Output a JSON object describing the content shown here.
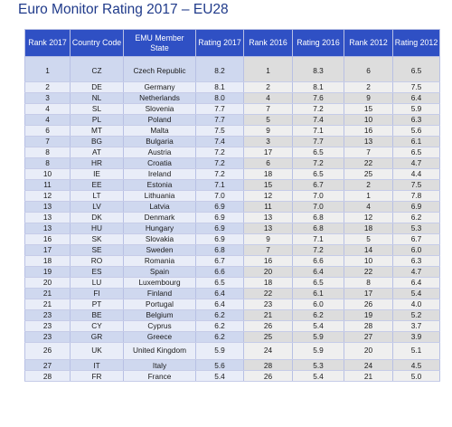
{
  "title": "Euro Monitor Rating 2017 – EU28",
  "columns": [
    "Rank 2017",
    "Country Code",
    "EMU Member State",
    "Rating 2017",
    "Rank 2016",
    "Rating 2016",
    "Rank 2012",
    "Rating 2012"
  ],
  "rows": [
    [
      "1",
      "CZ",
      "Czech Republic",
      "8.2",
      "1",
      "8.3",
      "6",
      "6.5"
    ],
    [
      "2",
      "DE",
      "Germany",
      "8.1",
      "2",
      "8.1",
      "2",
      "7.5"
    ],
    [
      "3",
      "NL",
      "Netherlands",
      "8.0",
      "4",
      "7.6",
      "9",
      "6.4"
    ],
    [
      "4",
      "SL",
      "Slovenia",
      "7.7",
      "7",
      "7.2",
      "15",
      "5.9"
    ],
    [
      "4",
      "PL",
      "Poland",
      "7.7",
      "5",
      "7.4",
      "10",
      "6.3"
    ],
    [
      "6",
      "MT",
      "Malta",
      "7.5",
      "9",
      "7.1",
      "16",
      "5.6"
    ],
    [
      "7",
      "BG",
      "Bulgaria",
      "7.4",
      "3",
      "7.7",
      "13",
      "6.1"
    ],
    [
      "8",
      "AT",
      "Austria",
      "7.2",
      "17",
      "6.5",
      "7",
      "6.5"
    ],
    [
      "8",
      "HR",
      "Croatia",
      "7.2",
      "6",
      "7.2",
      "22",
      "4.7"
    ],
    [
      "10",
      "IE",
      "Ireland",
      "7.2",
      "18",
      "6.5",
      "25",
      "4.4"
    ],
    [
      "11",
      "EE",
      "Estonia",
      "7.1",
      "15",
      "6.7",
      "2",
      "7.5"
    ],
    [
      "12",
      "LT",
      "Lithuania",
      "7.0",
      "12",
      "7.0",
      "1",
      "7.8"
    ],
    [
      "13",
      "LV",
      "Latvia",
      "6.9",
      "11",
      "7.0",
      "4",
      "6.9"
    ],
    [
      "13",
      "DK",
      "Denmark",
      "6.9",
      "13",
      "6.8",
      "12",
      "6.2"
    ],
    [
      "13",
      "HU",
      "Hungary",
      "6.9",
      "13",
      "6.8",
      "18",
      "5.3"
    ],
    [
      "16",
      "SK",
      "Slovakia",
      "6.9",
      "9",
      "7.1",
      "5",
      "6.7"
    ],
    [
      "17",
      "SE",
      "Sweden",
      "6.8",
      "7",
      "7.2",
      "14",
      "6.0"
    ],
    [
      "18",
      "RO",
      "Romania",
      "6.7",
      "16",
      "6.6",
      "10",
      "6.3"
    ],
    [
      "19",
      "ES",
      "Spain",
      "6.6",
      "20",
      "6.4",
      "22",
      "4.7"
    ],
    [
      "20",
      "LU",
      "Luxembourg",
      "6.5",
      "18",
      "6.5",
      "8",
      "6.4"
    ],
    [
      "21",
      "FI",
      "Finland",
      "6.4",
      "22",
      "6.1",
      "17",
      "5.4"
    ],
    [
      "21",
      "PT",
      "Portugal",
      "6.4",
      "23",
      "6.0",
      "26",
      "4.0"
    ],
    [
      "23",
      "BE",
      "Belgium",
      "6.2",
      "21",
      "6.2",
      "19",
      "5.2"
    ],
    [
      "23",
      "CY",
      "Cyprus",
      "6.2",
      "26",
      "5.4",
      "28",
      "3.7"
    ],
    [
      "23",
      "GR",
      "Greece",
      "6.2",
      "25",
      "5.9",
      "27",
      "3.9"
    ],
    [
      "26",
      "UK",
      "United Kingdom",
      "5.9",
      "24",
      "5.9",
      "20",
      "5.1"
    ],
    [
      "27",
      "IT",
      "Italy",
      "5.6",
      "28",
      "5.3",
      "24",
      "4.5"
    ],
    [
      "28",
      "FR",
      "France",
      "5.4",
      "26",
      "5.4",
      "21",
      "5.0"
    ]
  ]
}
